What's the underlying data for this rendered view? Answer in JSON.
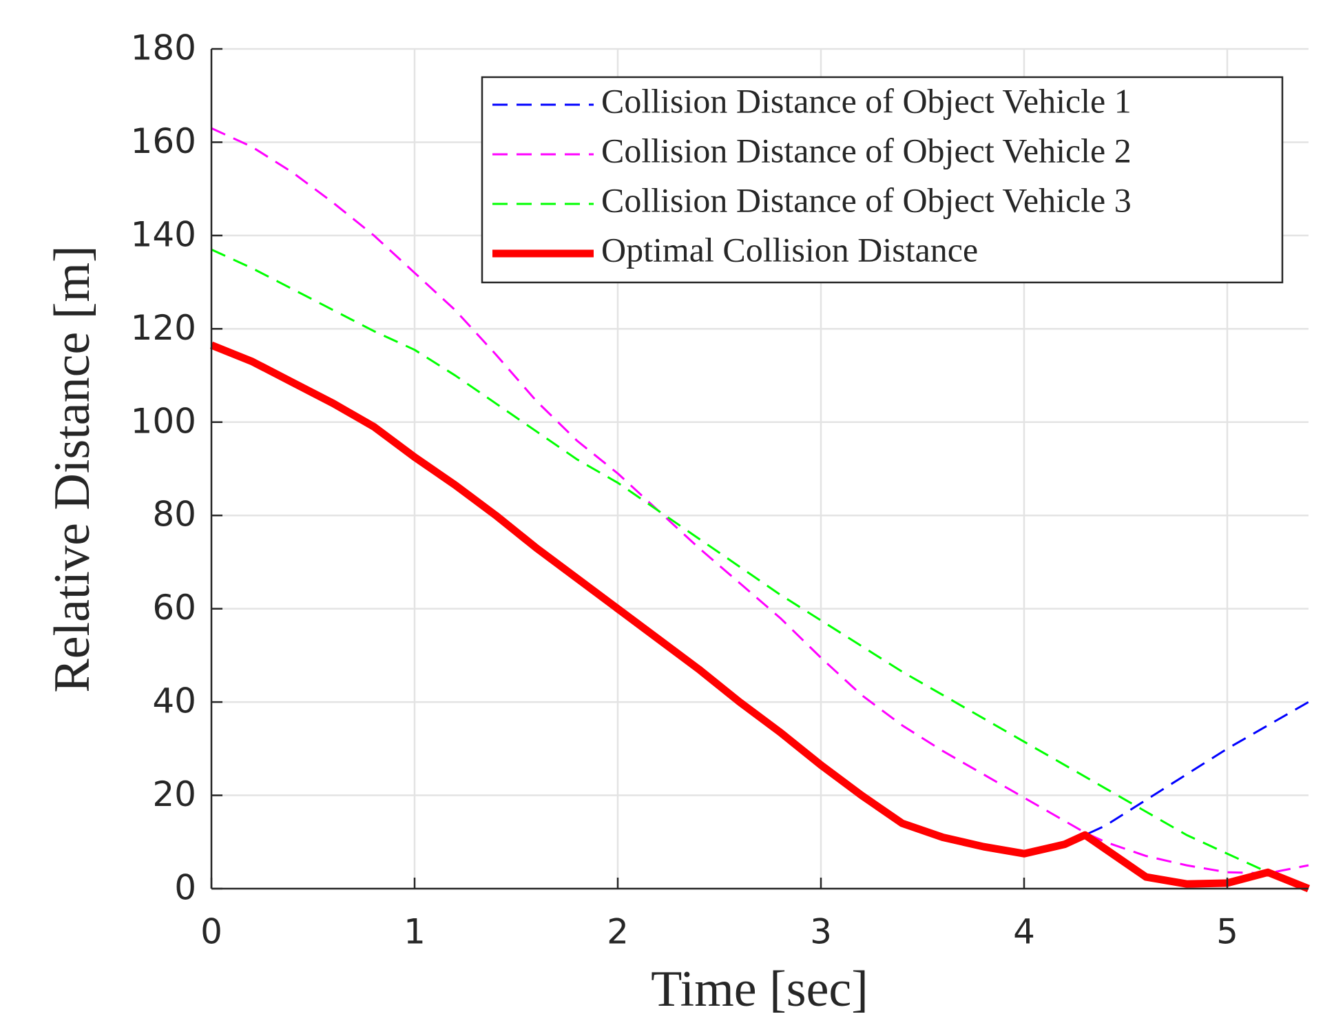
{
  "chart_data": {
    "type": "line",
    "xlabel": "Time [sec]",
    "ylabel": "Relative Distance [m]",
    "x": [
      0,
      0.2,
      0.4,
      0.6,
      0.8,
      1.0,
      1.2,
      1.4,
      1.6,
      1.8,
      2.0,
      2.2,
      2.4,
      2.6,
      2.8,
      3.0,
      3.2,
      3.4,
      3.6,
      3.8,
      4.0,
      4.2,
      4.3,
      4.4,
      4.6,
      4.8,
      5.0,
      5.2,
      5.4
    ],
    "series": [
      {
        "name": "Collision Distance of Object Vehicle 1",
        "color": "#0000ff",
        "linestyle": "dashed",
        "linewidth": 3,
        "values": [
          116.5,
          113,
          108.5,
          104,
          99,
          92.5,
          86.5,
          80,
          73,
          66.5,
          60,
          53.5,
          47,
          40,
          33.5,
          26.5,
          20,
          14,
          11,
          9,
          7.5,
          9.5,
          11.5,
          13.5,
          19,
          24.5,
          30,
          35,
          40
        ]
      },
      {
        "name": "Collision Distance of Object Vehicle 2",
        "color": "#ff00ff",
        "linestyle": "dashed",
        "linewidth": 3,
        "values": [
          163,
          159,
          153.5,
          147,
          140,
          132,
          124,
          114.5,
          104.5,
          96,
          89,
          81,
          73,
          65.5,
          58,
          49.5,
          41.5,
          35,
          29.5,
          24.5,
          19.5,
          14.5,
          12,
          10,
          7,
          5,
          3.5,
          3.3,
          5
        ]
      },
      {
        "name": "Collision Distance of Object Vehicle 3",
        "color": "#00ff00",
        "linestyle": "dashed",
        "linewidth": 3,
        "values": [
          137,
          133,
          128.5,
          124,
          119.5,
          115.5,
          110,
          104,
          98,
          92,
          87,
          81,
          75,
          69,
          63,
          57.5,
          52,
          46.5,
          41.5,
          36.5,
          31.5,
          26.5,
          24,
          21.5,
          16.5,
          11.5,
          7.5,
          3.5,
          0.5
        ]
      },
      {
        "name": "Optimal Collision Distance",
        "color": "#ff0000",
        "linestyle": "solid",
        "linewidth": 11,
        "values": [
          116.5,
          113,
          108.5,
          104,
          99,
          92.5,
          86.5,
          80,
          73,
          66.5,
          60,
          53.5,
          47,
          40,
          33.5,
          26.5,
          20,
          14,
          11,
          9,
          7.5,
          9.5,
          11.5,
          8.5,
          2.5,
          1,
          1.2,
          3.5,
          0
        ]
      }
    ],
    "xlim": [
      0,
      5.4
    ],
    "xticks": [
      0,
      1,
      2,
      3,
      4,
      5
    ],
    "ylim": [
      0,
      180
    ],
    "yticks": [
      0,
      20,
      40,
      60,
      80,
      100,
      120,
      140,
      160,
      180
    ],
    "grid": true,
    "legend": "upper right"
  }
}
